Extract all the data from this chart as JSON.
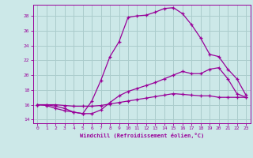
{
  "xlabel": "Windchill (Refroidissement éolien,°C)",
  "xlim": [
    -0.5,
    23.5
  ],
  "ylim": [
    13.5,
    29.5
  ],
  "yticks": [
    14,
    16,
    18,
    20,
    22,
    24,
    26,
    28
  ],
  "xticks": [
    0,
    1,
    2,
    3,
    4,
    5,
    6,
    7,
    8,
    9,
    10,
    11,
    12,
    13,
    14,
    15,
    16,
    17,
    18,
    19,
    20,
    21,
    22,
    23
  ],
  "bg_color": "#cce8e8",
  "grid_color": "#aacccc",
  "line_color": "#990099",
  "line1_x": [
    0,
    1,
    2,
    3,
    4,
    5,
    6,
    7,
    8,
    9,
    10,
    11,
    12,
    13,
    14,
    15,
    16,
    17,
    18,
    19,
    20,
    21,
    22,
    23
  ],
  "line1_y": [
    16.0,
    15.9,
    15.5,
    15.2,
    15.0,
    14.8,
    16.5,
    19.3,
    22.5,
    24.5,
    27.8,
    28.0,
    28.1,
    28.5,
    29.0,
    29.1,
    28.3,
    26.8,
    25.0,
    22.8,
    22.5,
    20.8,
    19.5,
    17.3
  ],
  "line2_x": [
    0,
    1,
    2,
    3,
    4,
    5,
    6,
    7,
    8,
    9,
    10,
    11,
    12,
    13,
    14,
    15,
    16,
    17,
    18,
    19,
    20,
    21,
    22,
    23
  ],
  "line2_y": [
    16.0,
    16.0,
    15.8,
    15.5,
    15.0,
    14.8,
    14.8,
    15.3,
    16.3,
    17.2,
    17.8,
    18.2,
    18.6,
    19.0,
    19.5,
    20.0,
    20.5,
    20.2,
    20.2,
    20.8,
    21.0,
    19.5,
    17.5,
    17.0
  ],
  "line3_x": [
    0,
    1,
    2,
    3,
    4,
    5,
    6,
    7,
    8,
    9,
    10,
    11,
    12,
    13,
    14,
    15,
    16,
    17,
    18,
    19,
    20,
    21,
    22,
    23
  ],
  "line3_y": [
    16.0,
    16.0,
    16.0,
    15.9,
    15.8,
    15.8,
    15.8,
    15.9,
    16.1,
    16.3,
    16.5,
    16.7,
    16.9,
    17.1,
    17.3,
    17.5,
    17.4,
    17.3,
    17.2,
    17.2,
    17.0,
    17.0,
    17.0,
    17.0
  ]
}
